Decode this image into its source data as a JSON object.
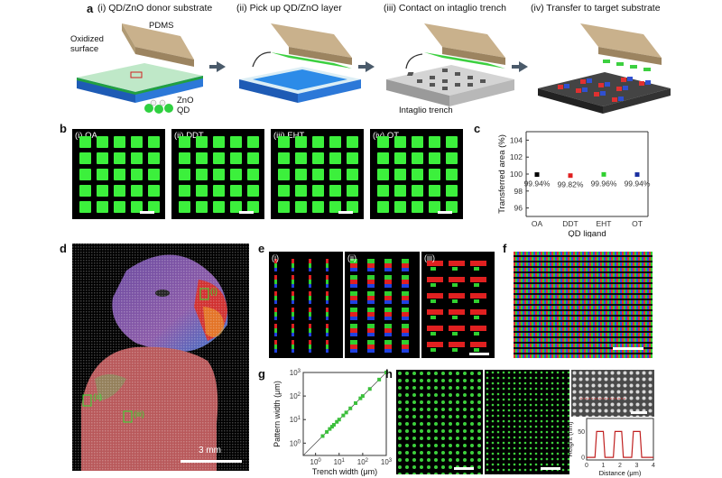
{
  "panels": {
    "a": {
      "letter": "a",
      "steps": [
        {
          "title": "(i) QD/ZnO donor substrate"
        },
        {
          "title": "(ii) Pick up QD/ZnO layer"
        },
        {
          "title": "(iii) Contact on intaglio trench"
        },
        {
          "title": "(iv) Transfer to target substrate"
        }
      ],
      "labels": {
        "pdms": "PDMS",
        "oxidized": "Oxidized\nsurface",
        "oxidized_1": "Oxidized",
        "oxidized_2": "surface",
        "zno": "ZnO",
        "qd": "QD",
        "intaglio": "Intaglio trench"
      }
    },
    "b": {
      "letter": "b",
      "subpanels": [
        {
          "label": "(i) OA"
        },
        {
          "label": "(ii) DDT"
        },
        {
          "label": "(iii) EHT"
        },
        {
          "label": "(iv) OT"
        }
      ]
    },
    "c": {
      "letter": "c"
    },
    "d": {
      "letter": "d",
      "scale_label": "3 mm",
      "roi_i": "(i)",
      "roi_ii": "(ii)",
      "roi_iii": "(iii)"
    },
    "e": {
      "letter": "e",
      "subpanels": [
        {
          "label": "(i)"
        },
        {
          "label": "(ii)"
        },
        {
          "label": "(iii)"
        }
      ]
    },
    "f": {
      "letter": "f"
    },
    "g": {
      "letter": "g"
    },
    "h": {
      "letter": "h"
    }
  },
  "chart_data": [
    {
      "type": "scatter",
      "title": "",
      "xlabel": "QD ligand",
      "ylabel": "Transferred area (%)",
      "categories": [
        "OA",
        "DDT",
        "EHT",
        "OT"
      ],
      "values": [
        99.94,
        99.82,
        99.96,
        99.94
      ],
      "value_labels": [
        "99.94%",
        "99.82%",
        "99.96%",
        "99.94%"
      ],
      "point_colors": [
        "#000000",
        "#e02020",
        "#30d030",
        "#1a2fa0"
      ],
      "ylim": [
        95,
        105
      ],
      "yticks": [
        96,
        98,
        100,
        102,
        104
      ]
    },
    {
      "type": "scatter",
      "title": "",
      "xlabel": "Trench width (μm)",
      "ylabel": "Pattern width (μm)",
      "xscale": "log",
      "yscale": "log",
      "xlim": [
        0.3,
        1000
      ],
      "ylim": [
        0.3,
        1000
      ],
      "xticks": [
        "10^0",
        "10^1",
        "10^2",
        "10^3"
      ],
      "yticks": [
        "10^0",
        "10^1",
        "10^2",
        "10^3"
      ],
      "x": [
        2,
        3,
        4,
        5,
        6,
        8,
        10,
        15,
        20,
        30,
        50,
        80,
        100,
        200,
        500,
        1000
      ],
      "y": [
        2,
        3,
        4,
        5,
        6,
        8,
        10,
        15,
        20,
        30,
        50,
        80,
        100,
        200,
        500,
        1000
      ],
      "point_color": "#3cbf3c"
    },
    {
      "type": "line",
      "title": "",
      "xlabel": "Distance (μm)",
      "ylabel": "Height (nm)",
      "xlim": [
        0,
        4
      ],
      "ylim": [
        -5,
        75
      ],
      "xticks": [
        0,
        1,
        2,
        3,
        4
      ],
      "yticks": [
        0,
        50
      ],
      "x": [
        0,
        0.5,
        0.6,
        1.0,
        1.1,
        1.6,
        1.7,
        2.1,
        2.2,
        2.7,
        2.8,
        3.2,
        3.3,
        4.0
      ],
      "y": [
        0,
        0,
        50,
        50,
        0,
        0,
        50,
        50,
        0,
        0,
        50,
        50,
        0,
        0
      ],
      "line_color": "#c02020"
    }
  ]
}
